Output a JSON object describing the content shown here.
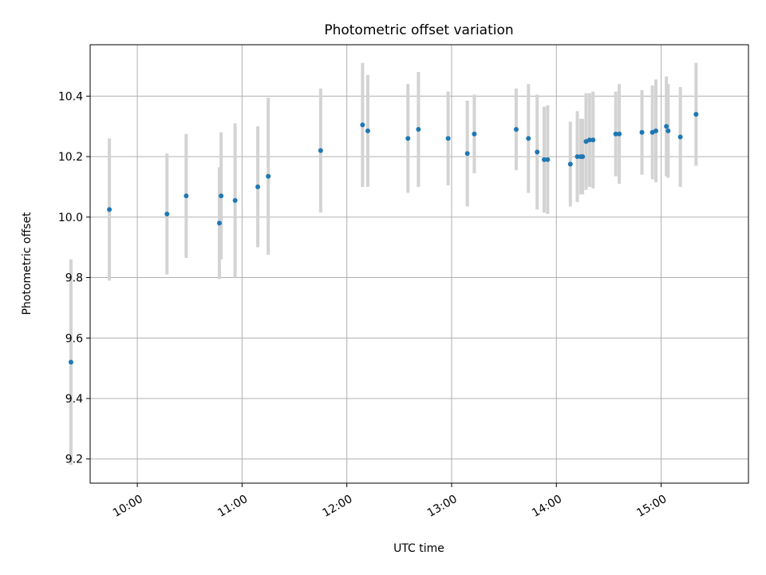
{
  "chart_data": {
    "type": "scatter",
    "title": "Photometric offset variation",
    "xlabel": "UTC time",
    "ylabel": "Photometric offset",
    "x_unit": "hours UTC",
    "xlim": [
      "09:33",
      "15:50"
    ],
    "ylim": [
      9.12,
      10.57
    ],
    "x_ticks": [
      {
        "value": "10:00",
        "label": "10:00"
      },
      {
        "value": "11:00",
        "label": "11:00"
      },
      {
        "value": "12:00",
        "label": "12:00"
      },
      {
        "value": "13:00",
        "label": "13:00"
      },
      {
        "value": "14:00",
        "label": "14:00"
      },
      {
        "value": "15:00",
        "label": "15:00"
      }
    ],
    "y_ticks": [
      {
        "value": 9.2,
        "label": "9.2"
      },
      {
        "value": 9.4,
        "label": "9.4"
      },
      {
        "value": 9.6,
        "label": "9.6"
      },
      {
        "value": 9.8,
        "label": "9.8"
      },
      {
        "value": 10.0,
        "label": "10.0"
      },
      {
        "value": 10.2,
        "label": "10.2"
      },
      {
        "value": 10.4,
        "label": "10.4"
      }
    ],
    "grid": true,
    "x_tick_rotation_deg": 30,
    "colors": {
      "point": "#1f77b4",
      "errorbar": "#d3d3d3",
      "grid": "#b0b0b0",
      "axes": "#000000"
    },
    "points": [
      {
        "x": "09:22",
        "y": 9.52,
        "err": 0.34
      },
      {
        "x": "09:44",
        "y": 10.025,
        "err": 0.235
      },
      {
        "x": "10:17",
        "y": 10.01,
        "err": 0.2
      },
      {
        "x": "10:28",
        "y": 10.07,
        "err": 0.205
      },
      {
        "x": "10:47",
        "y": 9.98,
        "err": 0.185
      },
      {
        "x": "10:48",
        "y": 10.07,
        "err": 0.21
      },
      {
        "x": "10:56",
        "y": 10.055,
        "err": 0.255
      },
      {
        "x": "11:09",
        "y": 10.1,
        "err": 0.2
      },
      {
        "x": "11:15",
        "y": 10.135,
        "err": 0.26
      },
      {
        "x": "11:45",
        "y": 10.22,
        "err": 0.205
      },
      {
        "x": "12:09",
        "y": 10.305,
        "err": 0.205
      },
      {
        "x": "12:12",
        "y": 10.285,
        "err": 0.185
      },
      {
        "x": "12:35",
        "y": 10.26,
        "err": 0.18
      },
      {
        "x": "12:41",
        "y": 10.29,
        "err": 0.19
      },
      {
        "x": "12:58",
        "y": 10.26,
        "err": 0.155
      },
      {
        "x": "13:09",
        "y": 10.21,
        "err": 0.175
      },
      {
        "x": "13:13",
        "y": 10.275,
        "err": 0.13
      },
      {
        "x": "13:37",
        "y": 10.29,
        "err": 0.135
      },
      {
        "x": "13:44",
        "y": 10.26,
        "err": 0.18
      },
      {
        "x": "13:49",
        "y": 10.215,
        "err": 0.19
      },
      {
        "x": "13:53",
        "y": 10.19,
        "err": 0.175
      },
      {
        "x": "13:55",
        "y": 10.19,
        "err": 0.18
      },
      {
        "x": "14:08",
        "y": 10.175,
        "err": 0.14
      },
      {
        "x": "14:12",
        "y": 10.2,
        "err": 0.15
      },
      {
        "x": "14:14",
        "y": 10.2,
        "err": 0.125
      },
      {
        "x": "14:15",
        "y": 10.2,
        "err": 0.125
      },
      {
        "x": "14:17",
        "y": 10.25,
        "err": 0.16
      },
      {
        "x": "14:19",
        "y": 10.255,
        "err": 0.155
      },
      {
        "x": "14:21",
        "y": 10.255,
        "err": 0.16
      },
      {
        "x": "14:34",
        "y": 10.275,
        "err": 0.14
      },
      {
        "x": "14:36",
        "y": 10.275,
        "err": 0.165
      },
      {
        "x": "14:49",
        "y": 10.28,
        "err": 0.14
      },
      {
        "x": "14:55",
        "y": 10.28,
        "err": 0.155
      },
      {
        "x": "14:57",
        "y": 10.285,
        "err": 0.17
      },
      {
        "x": "15:03",
        "y": 10.3,
        "err": 0.165
      },
      {
        "x": "15:04",
        "y": 10.285,
        "err": 0.155
      },
      {
        "x": "15:11",
        "y": 10.265,
        "err": 0.165
      },
      {
        "x": "15:20",
        "y": 10.34,
        "err": 0.17
      }
    ]
  }
}
